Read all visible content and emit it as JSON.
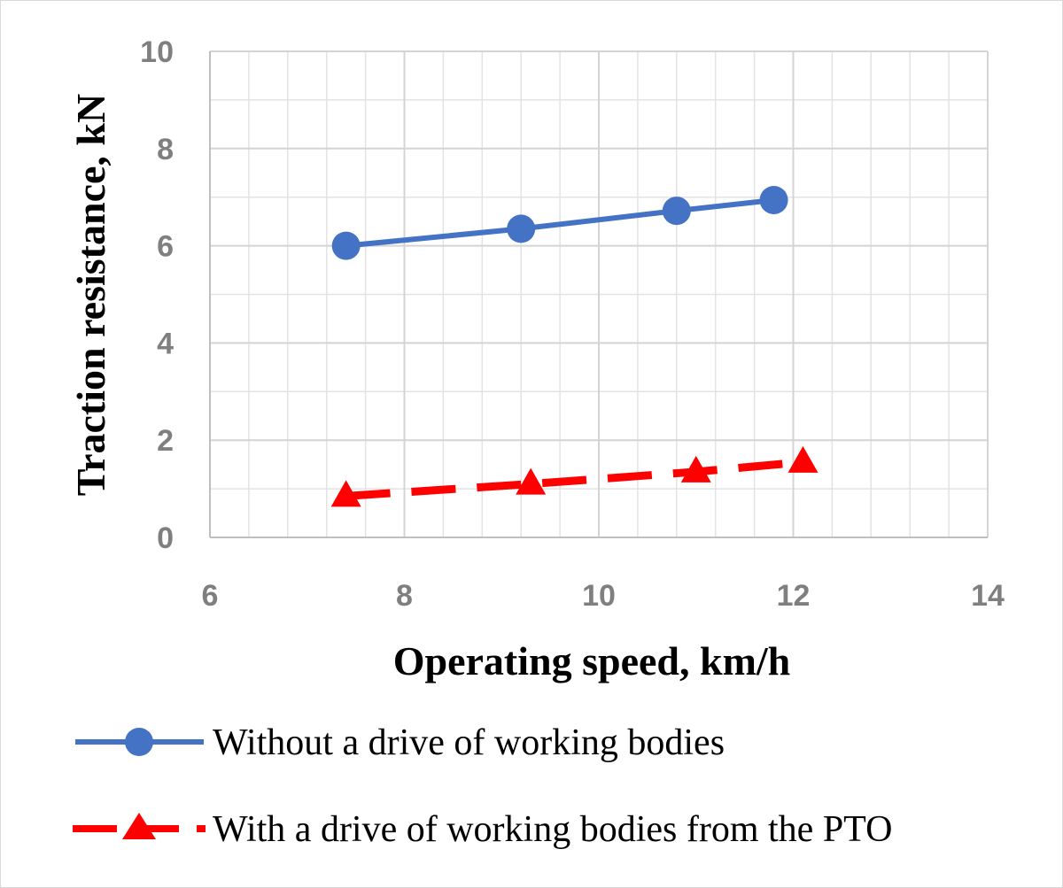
{
  "chart_data": {
    "type": "line",
    "xlabel": "Operating speed, km/h",
    "ylabel": "Traction resistance, kN",
    "xlim": [
      6,
      14
    ],
    "ylim": [
      0,
      10
    ],
    "x_ticks": [
      "6",
      "8",
      "10",
      "12",
      "14"
    ],
    "y_ticks": [
      "0",
      "2",
      "4",
      "6",
      "8",
      "10"
    ],
    "x_tick_values": [
      6,
      8,
      10,
      12,
      14
    ],
    "y_tick_values": [
      0,
      2,
      4,
      6,
      8,
      10
    ],
    "x_minor_step": 0.4,
    "y_minor_step": 1,
    "grid": true,
    "legend_position": "bottom",
    "series": [
      {
        "name": "Without a drive of working bodies",
        "x": [
          7.4,
          9.2,
          10.8,
          11.8
        ],
        "y": [
          6.0,
          6.35,
          6.72,
          6.94
        ],
        "color": "#4472c4",
        "marker": "circle",
        "line": "solid"
      },
      {
        "name": "With a drive of working bodies from the PTO",
        "x": [
          7.4,
          9.3,
          11.0,
          12.1
        ],
        "y": [
          0.85,
          1.1,
          1.35,
          1.55
        ],
        "color": "#ff0000",
        "marker": "triangle",
        "line": "dashed"
      }
    ]
  }
}
